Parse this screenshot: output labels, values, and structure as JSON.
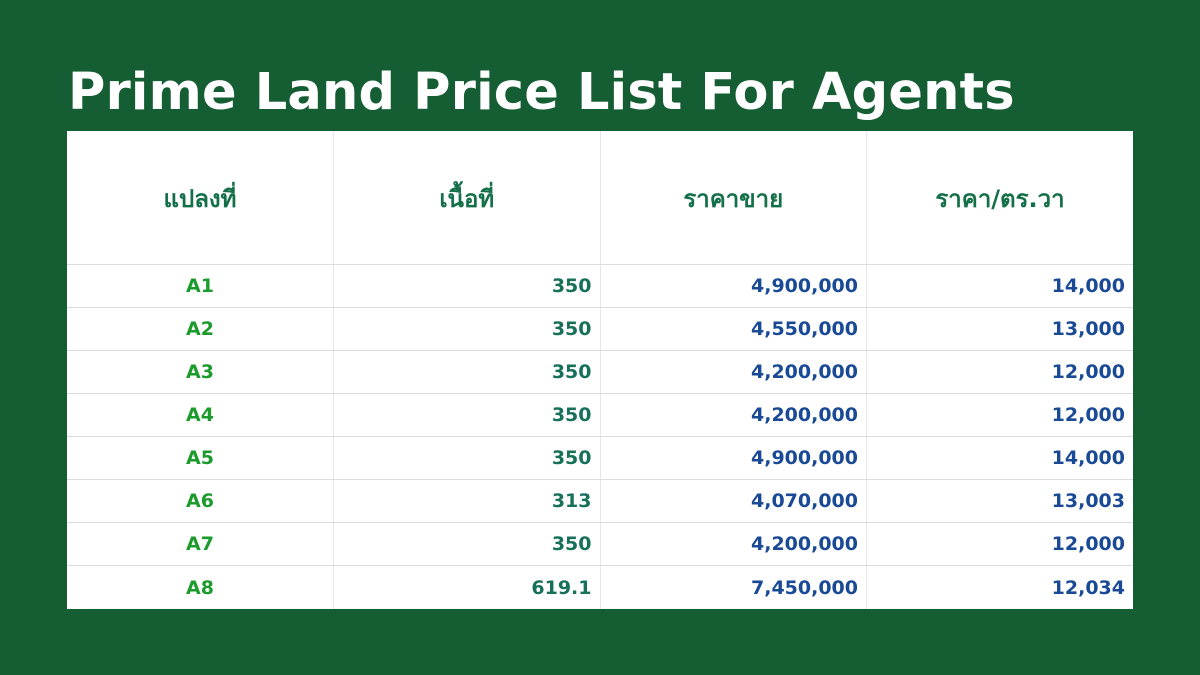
{
  "page": {
    "title": "Prime Land Price List For Agents",
    "colors": {
      "background": "#155e34",
      "title_text": "#ffffff",
      "header_text": "#15704a",
      "plot_text": "#1b9b2b",
      "area_text": "#17715a",
      "price_text": "#1a4a96"
    }
  },
  "table": {
    "headers": [
      "แปลงที่",
      "เนื้อที่",
      "ราคาขาย",
      "ราคา/ตร.วา"
    ],
    "rows": [
      {
        "plot": "A1",
        "area": "350",
        "price": "4,900,000",
        "price_per_wa": "14,000"
      },
      {
        "plot": "A2",
        "area": "350",
        "price": "4,550,000",
        "price_per_wa": "13,000"
      },
      {
        "plot": "A3",
        "area": "350",
        "price": "4,200,000",
        "price_per_wa": "12,000"
      },
      {
        "plot": "A4",
        "area": "350",
        "price": "4,200,000",
        "price_per_wa": "12,000"
      },
      {
        "plot": "A5",
        "area": "350",
        "price": "4,900,000",
        "price_per_wa": "14,000"
      },
      {
        "plot": "A6",
        "area": "313",
        "price": "4,070,000",
        "price_per_wa": "13,003"
      },
      {
        "plot": "A7",
        "area": "350",
        "price": "4,200,000",
        "price_per_wa": "12,000"
      },
      {
        "plot": "A8",
        "area": "619.1",
        "price": "7,450,000",
        "price_per_wa": "12,034"
      }
    ]
  }
}
